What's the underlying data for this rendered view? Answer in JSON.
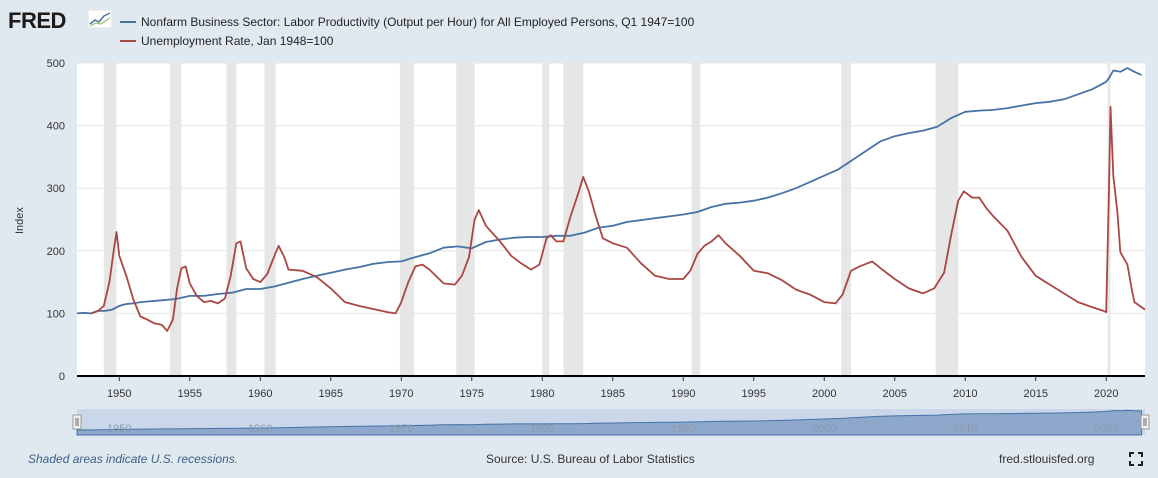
{
  "header": {
    "logo_text": "FRED"
  },
  "colors": {
    "background": "#e1e9f0",
    "plot_background": "#ffffff",
    "recession": "#e6e6e6",
    "productivity": "#4572a7",
    "unemployment": "#aa4643",
    "navigator_fill": "#9eb4d8",
    "navigator_line": "#4572a7"
  },
  "footer": {
    "recession_note": "Shaded areas indicate U.S. recessions.",
    "source": "Source: U.S. Bureau of Labor Statistics",
    "url": "fred.stlouisfed.org",
    "fullscreen_icon": "fullscreen-icon"
  },
  "chart_data": {
    "type": "line",
    "ylabel": "Index",
    "ylim": [
      0,
      500
    ],
    "yticks": [
      0,
      100,
      200,
      300,
      400,
      500
    ],
    "xlim": [
      1947.0,
      2022.75
    ],
    "xticks": [
      "1950",
      "1955",
      "1960",
      "1965",
      "1970",
      "1975",
      "1980",
      "1985",
      "1990",
      "1995",
      "2000",
      "2005",
      "2010",
      "2015",
      "2020"
    ],
    "navigator_ticks": [
      "1950",
      "1960",
      "1970",
      "1980",
      "1990",
      "2000",
      "2010",
      "2020"
    ],
    "grid": true,
    "legend_position": "top-left",
    "recessions": [
      [
        1948.9,
        1949.8
      ],
      [
        1953.6,
        1954.4
      ],
      [
        1957.6,
        1958.3
      ],
      [
        1960.3,
        1961.1
      ],
      [
        1969.9,
        1970.9
      ],
      [
        1973.9,
        1975.2
      ],
      [
        1980.0,
        1980.5
      ],
      [
        1981.5,
        1982.9
      ],
      [
        1990.6,
        1991.2
      ],
      [
        2001.2,
        2001.9
      ],
      [
        2007.9,
        2009.5
      ],
      [
        2020.1,
        2020.3
      ]
    ],
    "series": [
      {
        "name": "Nonfarm Business Sector: Labor Productivity (Output per Hour) for All Employed Persons, Q1 1947=100",
        "color": "#4572a7",
        "points": [
          [
            1947.0,
            100
          ],
          [
            1947.5,
            101
          ],
          [
            1948.0,
            100
          ],
          [
            1948.5,
            104
          ],
          [
            1949.0,
            104
          ],
          [
            1949.5,
            106
          ],
          [
            1950.0,
            112
          ],
          [
            1950.5,
            115
          ],
          [
            1951.0,
            116
          ],
          [
            1951.5,
            118
          ],
          [
            1952.0,
            119
          ],
          [
            1953.0,
            121
          ],
          [
            1954.0,
            123
          ],
          [
            1955.0,
            128
          ],
          [
            1956.0,
            128
          ],
          [
            1957.0,
            131
          ],
          [
            1958.0,
            133
          ],
          [
            1959.0,
            139
          ],
          [
            1960.0,
            139
          ],
          [
            1960.5,
            141
          ],
          [
            1961.0,
            143
          ],
          [
            1962.0,
            149
          ],
          [
            1963.0,
            155
          ],
          [
            1964.0,
            160
          ],
          [
            1965.0,
            165
          ],
          [
            1966.0,
            170
          ],
          [
            1967.0,
            174
          ],
          [
            1968.0,
            179
          ],
          [
            1969.0,
            182
          ],
          [
            1970.0,
            183
          ],
          [
            1971.0,
            190
          ],
          [
            1972.0,
            196
          ],
          [
            1973.0,
            205
          ],
          [
            1974.0,
            207
          ],
          [
            1975.0,
            204
          ],
          [
            1976.0,
            214
          ],
          [
            1977.0,
            218
          ],
          [
            1978.0,
            221
          ],
          [
            1979.0,
            222
          ],
          [
            1980.0,
            222
          ],
          [
            1981.0,
            224
          ],
          [
            1982.0,
            224
          ],
          [
            1983.0,
            229
          ],
          [
            1984.0,
            237
          ],
          [
            1985.0,
            240
          ],
          [
            1986.0,
            246
          ],
          [
            1987.0,
            249
          ],
          [
            1988.0,
            252
          ],
          [
            1989.0,
            255
          ],
          [
            1990.0,
            258
          ],
          [
            1991.0,
            262
          ],
          [
            1992.0,
            270
          ],
          [
            1993.0,
            275
          ],
          [
            1994.0,
            277
          ],
          [
            1995.0,
            280
          ],
          [
            1996.0,
            285
          ],
          [
            1997.0,
            292
          ],
          [
            1998.0,
            300
          ],
          [
            1999.0,
            310
          ],
          [
            2000.0,
            320
          ],
          [
            2001.0,
            330
          ],
          [
            2002.0,
            345
          ],
          [
            2003.0,
            360
          ],
          [
            2004.0,
            375
          ],
          [
            2005.0,
            383
          ],
          [
            2006.0,
            388
          ],
          [
            2007.0,
            392
          ],
          [
            2008.0,
            398
          ],
          [
            2009.0,
            412
          ],
          [
            2010.0,
            422
          ],
          [
            2011.0,
            424
          ],
          [
            2012.0,
            425
          ],
          [
            2013.0,
            428
          ],
          [
            2014.0,
            432
          ],
          [
            2015.0,
            436
          ],
          [
            2016.0,
            438
          ],
          [
            2017.0,
            442
          ],
          [
            2018.0,
            450
          ],
          [
            2019.0,
            458
          ],
          [
            2020.0,
            470
          ],
          [
            2020.25,
            478
          ],
          [
            2020.5,
            488
          ],
          [
            2021.0,
            486
          ],
          [
            2021.5,
            492
          ],
          [
            2022.0,
            486
          ],
          [
            2022.5,
            481
          ]
        ]
      },
      {
        "name": "Unemployment Rate, Jan 1948=100",
        "color": "#aa4643",
        "points": [
          [
            1948.0,
            100
          ],
          [
            1948.5,
            104
          ],
          [
            1948.9,
            112
          ],
          [
            1949.3,
            150
          ],
          [
            1949.6,
            200
          ],
          [
            1949.8,
            230
          ],
          [
            1950.0,
            192
          ],
          [
            1950.5,
            160
          ],
          [
            1951.0,
            122
          ],
          [
            1951.5,
            95
          ],
          [
            1952.0,
            90
          ],
          [
            1952.5,
            84
          ],
          [
            1953.0,
            82
          ],
          [
            1953.4,
            72
          ],
          [
            1953.8,
            90
          ],
          [
            1954.1,
            140
          ],
          [
            1954.4,
            172
          ],
          [
            1954.7,
            175
          ],
          [
            1955.0,
            148
          ],
          [
            1955.5,
            128
          ],
          [
            1956.0,
            118
          ],
          [
            1956.5,
            120
          ],
          [
            1957.0,
            116
          ],
          [
            1957.5,
            124
          ],
          [
            1957.9,
            160
          ],
          [
            1958.3,
            212
          ],
          [
            1958.6,
            215
          ],
          [
            1959.0,
            172
          ],
          [
            1959.5,
            155
          ],
          [
            1960.0,
            150
          ],
          [
            1960.5,
            163
          ],
          [
            1961.0,
            192
          ],
          [
            1961.3,
            208
          ],
          [
            1961.7,
            190
          ],
          [
            1962.0,
            170
          ],
          [
            1963.0,
            168
          ],
          [
            1964.0,
            158
          ],
          [
            1965.0,
            140
          ],
          [
            1966.0,
            118
          ],
          [
            1967.0,
            112
          ],
          [
            1968.0,
            107
          ],
          [
            1969.0,
            102
          ],
          [
            1969.6,
            100
          ],
          [
            1970.0,
            118
          ],
          [
            1970.5,
            150
          ],
          [
            1971.0,
            175
          ],
          [
            1971.5,
            178
          ],
          [
            1972.0,
            170
          ],
          [
            1973.0,
            148
          ],
          [
            1973.8,
            146
          ],
          [
            1974.3,
            160
          ],
          [
            1974.8,
            190
          ],
          [
            1975.2,
            250
          ],
          [
            1975.5,
            265
          ],
          [
            1976.0,
            240
          ],
          [
            1977.0,
            215
          ],
          [
            1977.8,
            192
          ],
          [
            1978.5,
            180
          ],
          [
            1979.2,
            170
          ],
          [
            1979.8,
            178
          ],
          [
            1980.3,
            220
          ],
          [
            1980.6,
            225
          ],
          [
            1981.0,
            215
          ],
          [
            1981.5,
            215
          ],
          [
            1982.0,
            255
          ],
          [
            1982.6,
            295
          ],
          [
            1982.9,
            318
          ],
          [
            1983.3,
            295
          ],
          [
            1983.8,
            255
          ],
          [
            1984.3,
            220
          ],
          [
            1985.0,
            212
          ],
          [
            1986.0,
            205
          ],
          [
            1987.0,
            180
          ],
          [
            1988.0,
            160
          ],
          [
            1989.0,
            155
          ],
          [
            1990.0,
            155
          ],
          [
            1990.5,
            168
          ],
          [
            1991.0,
            195
          ],
          [
            1991.5,
            208
          ],
          [
            1992.0,
            215
          ],
          [
            1992.5,
            225
          ],
          [
            1993.0,
            212
          ],
          [
            1994.0,
            192
          ],
          [
            1995.0,
            168
          ],
          [
            1996.0,
            164
          ],
          [
            1997.0,
            153
          ],
          [
            1998.0,
            138
          ],
          [
            1999.0,
            130
          ],
          [
            2000.0,
            118
          ],
          [
            2000.8,
            116
          ],
          [
            2001.3,
            130
          ],
          [
            2001.9,
            168
          ],
          [
            2002.5,
            175
          ],
          [
            2003.4,
            183
          ],
          [
            2004.0,
            172
          ],
          [
            2005.0,
            155
          ],
          [
            2006.0,
            140
          ],
          [
            2007.0,
            132
          ],
          [
            2007.8,
            140
          ],
          [
            2008.5,
            165
          ],
          [
            2009.0,
            225
          ],
          [
            2009.5,
            280
          ],
          [
            2009.9,
            295
          ],
          [
            2010.5,
            285
          ],
          [
            2011.0,
            285
          ],
          [
            2011.5,
            268
          ],
          [
            2012.0,
            255
          ],
          [
            2013.0,
            232
          ],
          [
            2014.0,
            190
          ],
          [
            2015.0,
            160
          ],
          [
            2016.0,
            146
          ],
          [
            2017.0,
            132
          ],
          [
            2018.0,
            118
          ],
          [
            2019.0,
            110
          ],
          [
            2019.8,
            104
          ],
          [
            2020.0,
            102
          ],
          [
            2020.2,
            300
          ],
          [
            2020.3,
            430
          ],
          [
            2020.5,
            320
          ],
          [
            2020.8,
            260
          ],
          [
            2021.0,
            198
          ],
          [
            2021.5,
            178
          ],
          [
            2021.8,
            140
          ],
          [
            2022.0,
            118
          ],
          [
            2022.5,
            110
          ],
          [
            2022.75,
            106
          ]
        ]
      }
    ]
  }
}
